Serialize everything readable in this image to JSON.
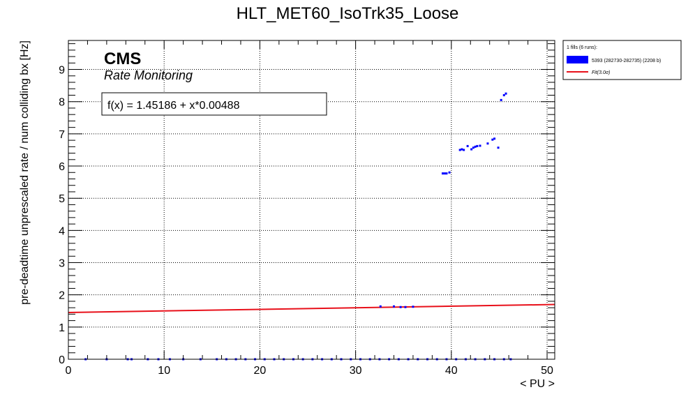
{
  "chart_data": {
    "type": "scatter",
    "title": "HLT_MET60_IsoTrk35_Loose",
    "xlabel": "< PU >",
    "ylabel": "pre-deadtime unprescaled rate / num colliding bx [Hz]",
    "xlim": [
      0,
      50.8
    ],
    "ylim": [
      0,
      9.9
    ],
    "x_ticks": [
      0,
      10,
      20,
      30,
      40,
      50
    ],
    "y_ticks": [
      0,
      1,
      2,
      3,
      4,
      5,
      6,
      7,
      8,
      9
    ],
    "grid": true,
    "cms_label": "CMS",
    "cms_sublabel": "Rate Monitoring",
    "fit_box_text": "f(x) = 1.45186 + x*0.00488",
    "fit": {
      "intercept": 1.45186,
      "slope": 0.00488,
      "color": "#e8101a"
    },
    "legend": {
      "position": "right-outside-top",
      "header": "1 fills (6 runs):",
      "entries": [
        {
          "label": "5393 (282730-282735) (2208 b)",
          "kind": "fill",
          "color": "#0000ff"
        },
        {
          "label": "Fit(3.0σ)",
          "kind": "line",
          "color": "#e8101a"
        }
      ]
    },
    "series": [
      {
        "name": "5393 (282730-282735) (2208 b)",
        "color": "#0000ff",
        "points": [
          [
            1.8,
            0.0
          ],
          [
            4.0,
            0.0
          ],
          [
            6.2,
            0.0
          ],
          [
            6.6,
            0.0
          ],
          [
            8.3,
            0.0
          ],
          [
            9.4,
            0.0
          ],
          [
            10.6,
            0.0
          ],
          [
            12.0,
            0.0
          ],
          [
            13.8,
            0.0
          ],
          [
            15.5,
            0.0
          ],
          [
            16.5,
            0.0
          ],
          [
            17.5,
            0.0
          ],
          [
            18.5,
            0.0
          ],
          [
            19.5,
            0.0
          ],
          [
            20.5,
            0.0
          ],
          [
            21.5,
            0.0
          ],
          [
            22.5,
            0.0
          ],
          [
            23.5,
            0.0
          ],
          [
            24.5,
            0.0
          ],
          [
            25.5,
            0.0
          ],
          [
            26.5,
            0.0
          ],
          [
            27.5,
            0.0
          ],
          [
            28.5,
            0.0
          ],
          [
            29.5,
            0.0
          ],
          [
            30.5,
            0.0
          ],
          [
            31.5,
            0.0
          ],
          [
            32.5,
            0.0
          ],
          [
            33.5,
            0.0
          ],
          [
            34.5,
            0.0
          ],
          [
            35.5,
            0.0
          ],
          [
            36.5,
            0.0
          ],
          [
            37.5,
            0.0
          ],
          [
            38.5,
            0.0
          ],
          [
            39.5,
            0.0
          ],
          [
            40.5,
            0.0
          ],
          [
            41.5,
            0.0
          ],
          [
            42.5,
            0.0
          ],
          [
            43.5,
            0.0
          ],
          [
            44.5,
            0.0
          ],
          [
            45.5,
            0.0
          ],
          [
            46.2,
            0.0
          ],
          [
            32.6,
            1.64
          ],
          [
            34.0,
            1.64
          ],
          [
            34.7,
            1.62
          ],
          [
            35.2,
            1.62
          ],
          [
            36.0,
            1.63
          ],
          [
            39.1,
            5.77
          ],
          [
            39.3,
            5.77
          ],
          [
            39.5,
            5.77
          ],
          [
            39.8,
            5.8
          ],
          [
            40.9,
            6.5
          ],
          [
            41.1,
            6.52
          ],
          [
            41.3,
            6.5
          ],
          [
            41.7,
            6.62
          ],
          [
            42.1,
            6.52
          ],
          [
            42.3,
            6.57
          ],
          [
            42.5,
            6.6
          ],
          [
            42.7,
            6.62
          ],
          [
            43.0,
            6.63
          ],
          [
            43.8,
            6.7
          ],
          [
            44.3,
            6.82
          ],
          [
            44.5,
            6.85
          ],
          [
            44.9,
            6.57
          ],
          [
            45.2,
            8.05
          ],
          [
            45.5,
            8.2
          ],
          [
            45.7,
            8.25
          ]
        ]
      }
    ]
  }
}
